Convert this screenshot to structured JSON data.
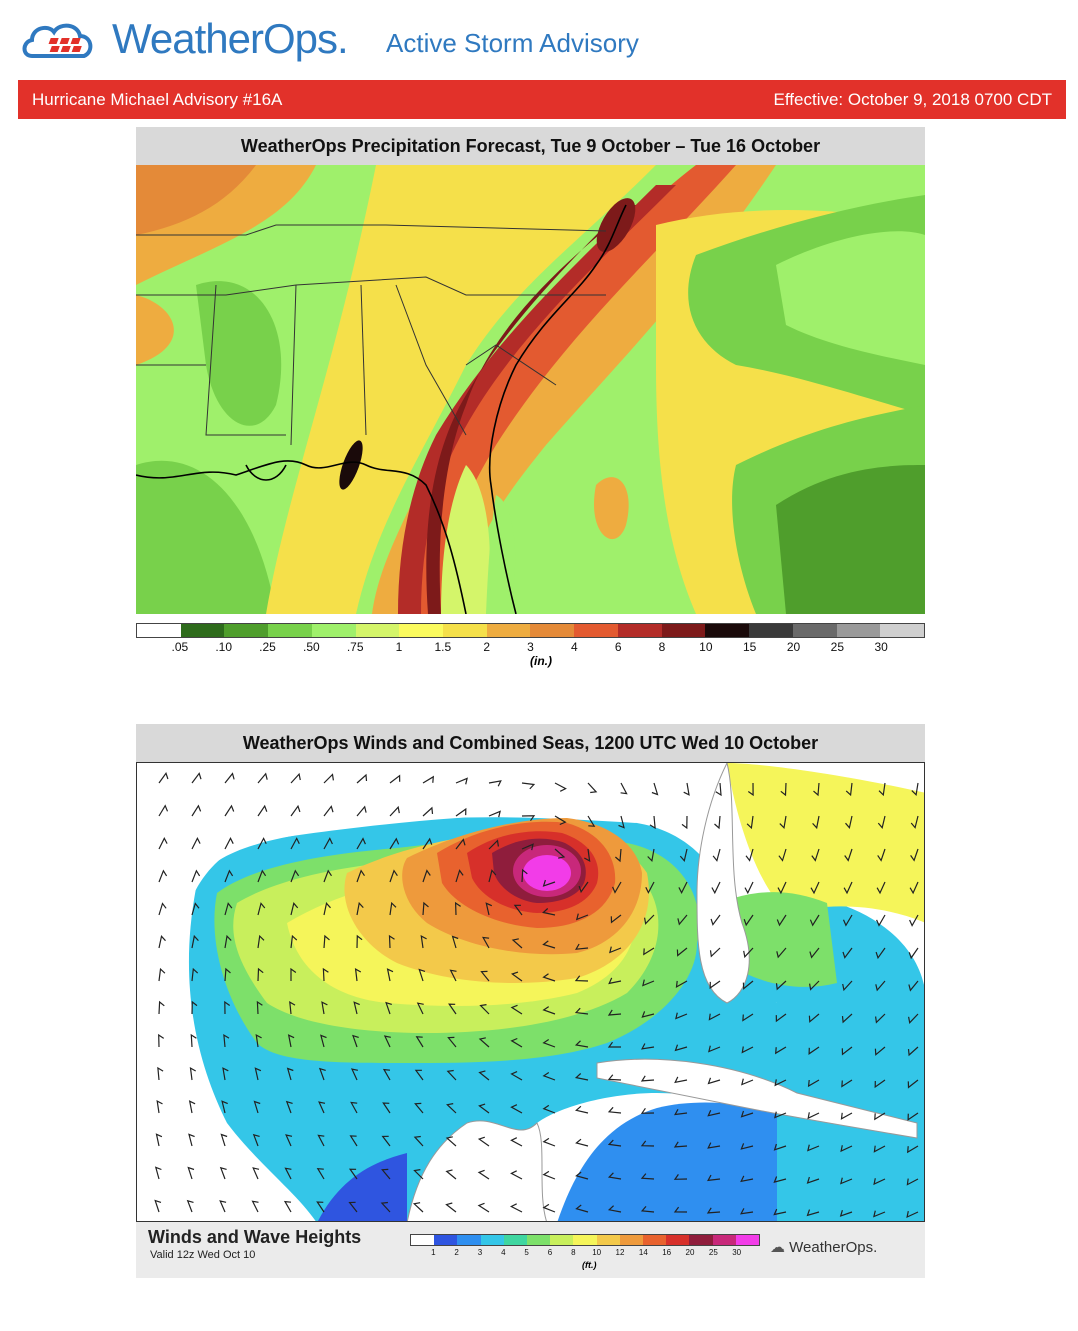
{
  "header": {
    "brand": "WeatherOps.",
    "subtitle": "Active Storm Advisory",
    "brand_color": "#2f79c0"
  },
  "banner": {
    "left_text": "Hurricane Michael Advisory #16A",
    "right_text": "Effective: October 9, 2018 0700 CDT",
    "color": "#e2312a"
  },
  "precip_panel": {
    "title": "WeatherOps Precipitation Forecast, Tue 9 October –  Tue 16 October",
    "scale_labels": [
      ".05",
      ".10",
      ".25",
      ".50",
      ".75",
      "1",
      "1.5",
      "2",
      "3",
      "4",
      "6",
      "8",
      "10",
      "15",
      "20",
      "25",
      "30"
    ],
    "scale_colors": [
      "#ffffff",
      "#2e6b1c",
      "#4f9e2c",
      "#78d14b",
      "#9ff06b",
      "#d4f56a",
      "#fbfb5e",
      "#f5e04a",
      "#eeac40",
      "#e48a38",
      "#e35a30",
      "#b32c28",
      "#7d1a1a",
      "#1a0a0a",
      "#3a3a3a",
      "#6a6a6a",
      "#9a9a9a",
      "#cfcfcf"
    ],
    "unit": "(in.)"
  },
  "winds_panel": {
    "title": "WeatherOps Winds and Combined Seas, 1200 UTC Wed 10 October",
    "footer_title": "Winds and Wave Heights",
    "footer_valid": "Valid 12z Wed Oct 10",
    "scale_labels": [
      "1",
      "2",
      "3",
      "4",
      "5",
      "6",
      "8",
      "10",
      "12",
      "14",
      "16",
      "20",
      "25",
      "30"
    ],
    "scale_colors": [
      "#ffffff",
      "#2f55e0",
      "#2f8ff0",
      "#34c6e8",
      "#3fd6a0",
      "#7de06a",
      "#c8ef5c",
      "#f5f55a",
      "#f3c94a",
      "#ee9a3c",
      "#e8622e",
      "#d7302a",
      "#8f1d3c",
      "#c8287a",
      "#f23ce8"
    ],
    "unit": "(ft.)",
    "footer_logo": "WeatherOps."
  }
}
